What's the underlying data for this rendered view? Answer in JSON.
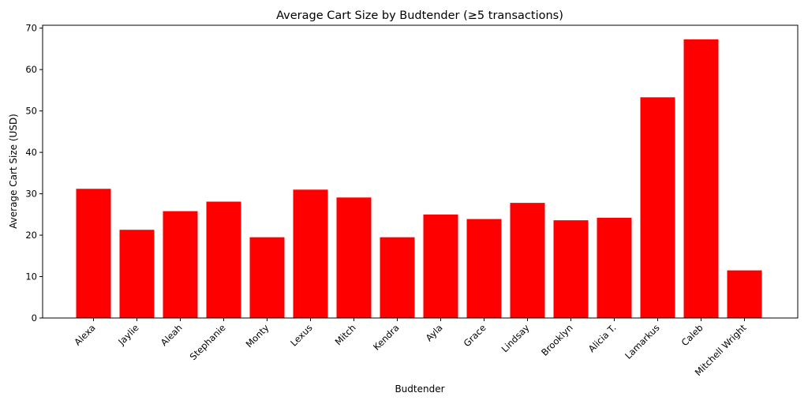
{
  "chart_data": {
    "type": "bar",
    "title": "Average Cart Size by Budtender (≥5 transactions)",
    "xlabel": "Budtender",
    "ylabel": "Average Cart Size (USD)",
    "ylim": [
      0,
      70.7
    ],
    "yticks": [
      0,
      10,
      20,
      30,
      40,
      50,
      60,
      70
    ],
    "grid": false,
    "bar_color": "#ff0000",
    "categories": [
      "Alexa",
      "Jaylie",
      "Aleah",
      "Stephanie",
      "Monty",
      "Lexus",
      "Mitch",
      "Kendra",
      "Ayla",
      "Grace",
      "Lindsay",
      "Brooklyn",
      "Alicia T.",
      "Lamarkus",
      "Caleb",
      "Mitchell Wright"
    ],
    "values": [
      31.2,
      21.3,
      25.8,
      28.1,
      19.5,
      31.0,
      29.1,
      19.5,
      25.0,
      23.9,
      27.8,
      23.6,
      24.2,
      53.3,
      67.3,
      11.5
    ]
  }
}
